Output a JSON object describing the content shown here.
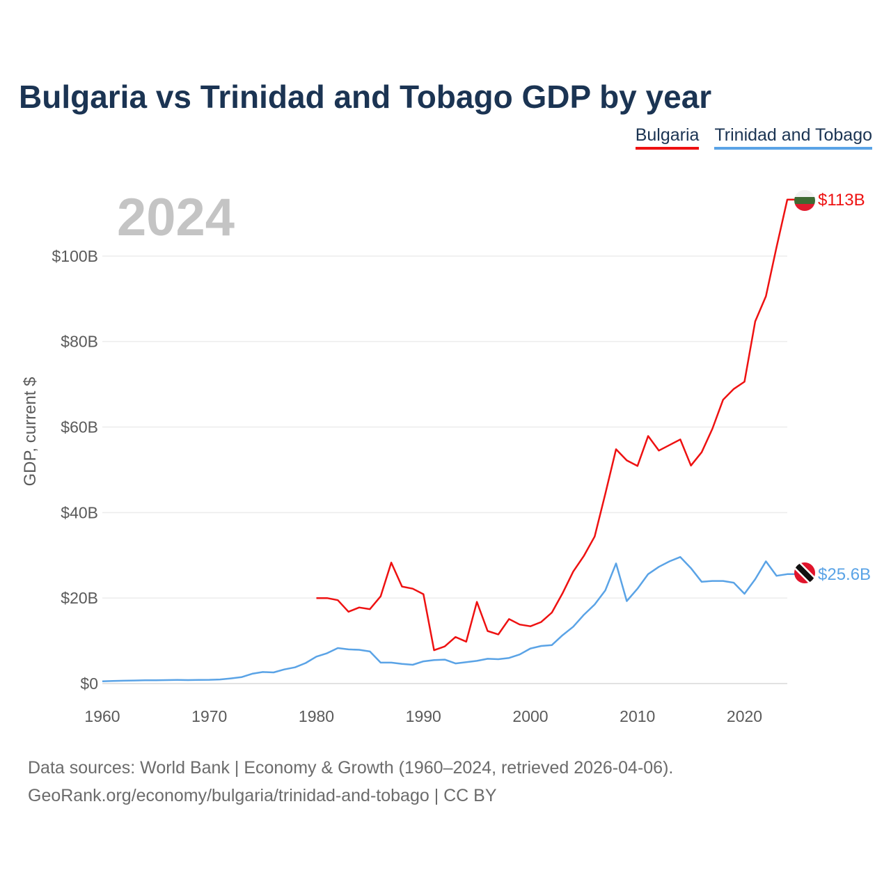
{
  "header": {
    "title": "Bulgaria vs Trinidad and Tobago GDP by year"
  },
  "legend": [
    {
      "name": "Bulgaria",
      "color": "#ee1111"
    },
    {
      "name": "Trinidad and Tobago",
      "color": "#5aa3e6"
    }
  ],
  "footer": {
    "source_line1": "Data sources: World Bank | Economy & Growth (1960–2024, retrieved 2026-04-06).",
    "source_line2": "GeoRank.org/economy/bulgaria/trinidad-and-tobago | CC BY"
  },
  "chart_data": {
    "type": "line",
    "title": "Bulgaria vs Trinidad and Tobago GDP by year",
    "year_label": "2024",
    "ylabel": "GDP, current $",
    "xlabel": "",
    "xlim": [
      1960,
      2024
    ],
    "ylim": [
      0,
      113
    ],
    "y_unit": "billion USD",
    "grid": true,
    "legend_position": "top-right",
    "x_ticks": [
      {
        "value": 1960,
        "label": "1960"
      },
      {
        "value": 1970,
        "label": "1970"
      },
      {
        "value": 1980,
        "label": "1980"
      },
      {
        "value": 1990,
        "label": "1990"
      },
      {
        "value": 2000,
        "label": "2000"
      },
      {
        "value": 2010,
        "label": "2010"
      },
      {
        "value": 2020,
        "label": "2020"
      }
    ],
    "y_ticks": [
      {
        "value": 0,
        "label": "$0"
      },
      {
        "value": 20,
        "label": "$20B"
      },
      {
        "value": 40,
        "label": "$40B"
      },
      {
        "value": 60,
        "label": "$60B"
      },
      {
        "value": 80,
        "label": "$80B"
      },
      {
        "value": 100,
        "label": "$100B"
      }
    ],
    "series": [
      {
        "name": "Bulgaria",
        "color": "#ee1111",
        "end_label": "$113B",
        "x": [
          1980,
          1981,
          1982,
          1983,
          1984,
          1985,
          1986,
          1987,
          1988,
          1989,
          1990,
          1991,
          1992,
          1993,
          1994,
          1995,
          1996,
          1997,
          1998,
          1999,
          2000,
          2001,
          2002,
          2003,
          2004,
          2005,
          2006,
          2007,
          2008,
          2009,
          2010,
          2011,
          2012,
          2013,
          2014,
          2015,
          2016,
          2017,
          2018,
          2019,
          2020,
          2021,
          2022,
          2023,
          2024
        ],
        "values": [
          20.0,
          20.0,
          19.5,
          16.8,
          17.8,
          17.4,
          20.4,
          28.3,
          22.7,
          22.2,
          20.9,
          7.8,
          8.7,
          10.9,
          9.8,
          19.1,
          12.3,
          11.5,
          15.1,
          13.8,
          13.4,
          14.4,
          16.6,
          21.1,
          26.2,
          29.9,
          34.4,
          44.4,
          54.8,
          52.2,
          50.9,
          57.9,
          54.5,
          55.8,
          57.1,
          51.0,
          54.1,
          59.6,
          66.4,
          68.9,
          70.6,
          84.7,
          90.6,
          102.1,
          113.2
        ]
      },
      {
        "name": "Trinidad and Tobago",
        "color": "#5aa3e6",
        "end_label": "$25.6B",
        "x": [
          1960,
          1961,
          1962,
          1963,
          1964,
          1965,
          1966,
          1967,
          1968,
          1969,
          1970,
          1971,
          1972,
          1973,
          1974,
          1975,
          1976,
          1977,
          1978,
          1979,
          1980,
          1981,
          1982,
          1983,
          1984,
          1985,
          1986,
          1987,
          1988,
          1989,
          1990,
          1991,
          1992,
          1993,
          1994,
          1995,
          1996,
          1997,
          1998,
          1999,
          2000,
          2001,
          2002,
          2003,
          2004,
          2005,
          2006,
          2007,
          2008,
          2009,
          2010,
          2011,
          2012,
          2013,
          2014,
          2015,
          2016,
          2017,
          2018,
          2019,
          2020,
          2021,
          2022,
          2023,
          2024
        ],
        "values": [
          0.54,
          0.62,
          0.67,
          0.72,
          0.76,
          0.77,
          0.81,
          0.84,
          0.81,
          0.86,
          0.88,
          0.96,
          1.2,
          1.5,
          2.3,
          2.7,
          2.6,
          3.3,
          3.8,
          4.8,
          6.3,
          7.1,
          8.3,
          8.0,
          7.9,
          7.5,
          4.9,
          4.9,
          4.6,
          4.4,
          5.2,
          5.5,
          5.6,
          4.7,
          5.0,
          5.3,
          5.8,
          5.7,
          6.0,
          6.8,
          8.2,
          8.8,
          9.0,
          11.3,
          13.3,
          16.1,
          18.5,
          21.8,
          28.1,
          19.3,
          22.2,
          25.6,
          27.3,
          28.6,
          29.6,
          27.0,
          23.8,
          24.0,
          24.0,
          23.6,
          21.0,
          24.4,
          28.6,
          25.2,
          25.6
        ]
      }
    ]
  }
}
